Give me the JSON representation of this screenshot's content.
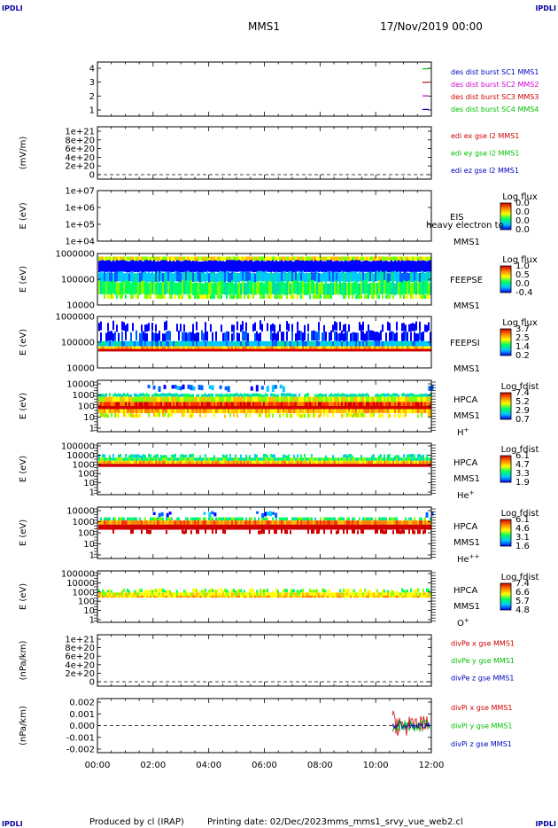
{
  "header": {
    "corner_mark": "IPDLI",
    "mission": "MMS1",
    "datetime": "17/Nov/2019 00:00"
  },
  "footer": {
    "produced_by": "Produced by cl (IRAP)",
    "printing_date": "Printing date: 02/Dec/2023",
    "script_name": "mms_mms1_srvy_vue_web2.cl"
  },
  "colors": {
    "blue": "#0000c0",
    "magenta": "#d000d0",
    "red": "#d00000",
    "green": "#00c000"
  },
  "chart_data": [
    {
      "type": "line",
      "id": "burst",
      "yticks": [
        1,
        2,
        3,
        4
      ],
      "ylim": [
        0.5,
        4.5
      ],
      "legend": [
        {
          "text": "des dist burst SC1 MMS1",
          "color": "#0000c0"
        },
        {
          "text": "des dist burst SC2 MMS2",
          "color": "#d000d0"
        },
        {
          "text": "des dist burst SC3 MMS3",
          "color": "#d00000"
        },
        {
          "text": "des dist burst SC4 MMS4",
          "color": "#00c000"
        }
      ]
    },
    {
      "type": "line",
      "id": "edi",
      "ylabel": "(mV/m)",
      "yticks": [
        "0",
        "2e+20",
        "4e+20",
        "6e+20",
        "8e+20",
        "1e+21"
      ],
      "legend": [
        {
          "text": "edi ex gse l2 MMS1",
          "color": "#d00000"
        },
        {
          "text": "edi ey gse l2 MMS1",
          "color": "#00c000"
        },
        {
          "text": "edi ez gse l2 MMS1",
          "color": "#0000c0"
        }
      ]
    },
    {
      "type": "heatmap",
      "id": "eis",
      "ylabel": "E (eV)",
      "yticks": [
        "1e+04",
        "1e+05",
        "1e+06",
        "1e+07"
      ],
      "instrument": "EIS",
      "spacecraft": "MMS1",
      "overlay": "heavy electron to",
      "cbar_title": "Log flux",
      "cbar_ticks": [
        "0.0",
        "0.0",
        "0.0",
        "0.0"
      ]
    },
    {
      "type": "heatmap",
      "id": "feepse",
      "ylabel": "E (eV)",
      "yticks": [
        "10000",
        "100000",
        "1000000"
      ],
      "instrument": "FEEPSE",
      "spacecraft": "MMS1",
      "cbar_title": "Log flux",
      "cbar_ticks": [
        "1.0",
        "0.5",
        "0.0",
        "-0.4"
      ]
    },
    {
      "type": "heatmap",
      "id": "feepsi",
      "ylabel": "E (eV)",
      "yticks": [
        "10000",
        "100000",
        "1000000"
      ],
      "instrument": "FEEPSI",
      "spacecraft": "MMS1",
      "cbar_title": "Log flux",
      "cbar_ticks": [
        "3.7",
        "2.5",
        "1.4",
        "0.2"
      ]
    },
    {
      "type": "heatmap",
      "id": "hpca_h",
      "ylabel": "E (eV)",
      "yticks": [
        "1",
        "10",
        "100",
        "1000",
        "10000"
      ],
      "instrument": "HPCA",
      "spacecraft": "MMS1",
      "species": "H",
      "species_sup": "+",
      "cbar_title": "Log fdist",
      "cbar_ticks": [
        "7.4",
        "5.2",
        "2.9",
        "0.7"
      ]
    },
    {
      "type": "heatmap",
      "id": "hpca_he",
      "ylabel": "E (eV)",
      "yticks": [
        "1",
        "10",
        "100",
        "1000",
        "10000",
        "100000"
      ],
      "instrument": "HPCA",
      "spacecraft": "MMS1",
      "species": "He",
      "species_sup": "+",
      "cbar_title": "Log fdist",
      "cbar_ticks": [
        "6.1",
        "4.7",
        "3.3",
        "1.9"
      ]
    },
    {
      "type": "heatmap",
      "id": "hpca_hepp",
      "ylabel": "E (eV)",
      "yticks": [
        "1",
        "10",
        "100",
        "1000",
        "10000"
      ],
      "instrument": "HPCA",
      "spacecraft": "MMS1",
      "species": "He",
      "species_sup": "++",
      "cbar_title": "Log fdist",
      "cbar_ticks": [
        "6.1",
        "4.6",
        "3.1",
        "1.6"
      ]
    },
    {
      "type": "heatmap",
      "id": "hpca_o",
      "ylabel": "E (eV)",
      "yticks": [
        "1",
        "10",
        "100",
        "1000",
        "10000",
        "100000"
      ],
      "instrument": "HPCA",
      "spacecraft": "MMS1",
      "species": "O",
      "species_sup": "+",
      "cbar_title": "Log fdist",
      "cbar_ticks": [
        "7.4",
        "6.6",
        "5.7",
        "4.8"
      ]
    },
    {
      "type": "line",
      "id": "divpe",
      "ylabel": "(nPa/km)",
      "yticks": [
        "0",
        "2e+20",
        "4e+20",
        "6e+20",
        "8e+20",
        "1e+21"
      ],
      "legend": [
        {
          "text": "divPe x gse MMS1",
          "color": "#d00000"
        },
        {
          "text": "divPe y gse MMS1",
          "color": "#00c000"
        },
        {
          "text": "divPe z gse MMS1",
          "color": "#0000c0"
        }
      ]
    },
    {
      "type": "line",
      "id": "divpi",
      "ylabel": "(nPa/km)",
      "yticks": [
        "-0.002",
        "-0.001",
        "0.000",
        "0.001",
        "0.002"
      ],
      "ylim": [
        -0.0023,
        0.0023
      ],
      "legend": [
        {
          "text": "divPi x gse MMS1",
          "color": "#d00000"
        },
        {
          "text": "divPi y gse MMS1",
          "color": "#00c000"
        },
        {
          "text": "divPi z gse MMS1",
          "color": "#0000c0"
        }
      ],
      "data_start_hour": 10.6
    }
  ],
  "time_axis": {
    "ticks": [
      "00:00",
      "02:00",
      "04:00",
      "06:00",
      "08:00",
      "10:00",
      "12:00"
    ],
    "range_hours": [
      0,
      12
    ]
  }
}
